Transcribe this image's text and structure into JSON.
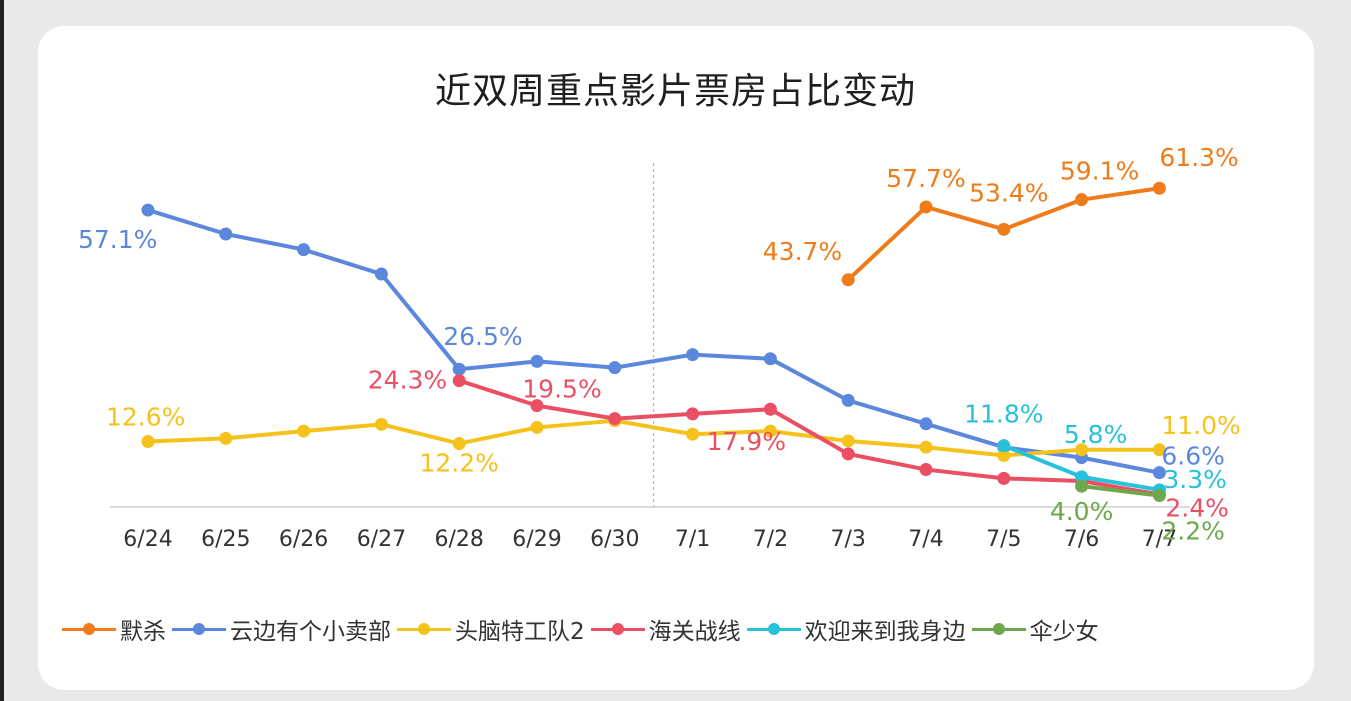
{
  "chart_data": {
    "type": "line",
    "title": "近双周重点影片票房占比变动",
    "xlabel": "",
    "ylabel": "",
    "categories": [
      "6/24",
      "6/25",
      "6/26",
      "6/27",
      "6/28",
      "6/29",
      "6/30",
      "7/1",
      "7/2",
      "7/3",
      "7/4",
      "7/5",
      "7/6",
      "7/7"
    ],
    "ylim": [
      0,
      65
    ],
    "grid": false,
    "legend_position": "bottom",
    "divider_after": "6/30",
    "series": [
      {
        "name": "默杀",
        "color": "#ef7b1a",
        "values": [
          null,
          null,
          null,
          null,
          null,
          null,
          null,
          null,
          null,
          43.7,
          57.7,
          53.4,
          59.1,
          61.3
        ]
      },
      {
        "name": "云边有个小卖部",
        "color": "#5b87dc",
        "values": [
          57.1,
          52.5,
          49.5,
          44.8,
          26.5,
          28.0,
          26.8,
          29.3,
          28.5,
          20.5,
          16.0,
          11.5,
          9.5,
          6.6
        ]
      },
      {
        "name": "头脑特工队2",
        "color": "#f5c21b",
        "values": [
          12.6,
          13.2,
          14.6,
          15.9,
          12.2,
          15.3,
          16.6,
          14.0,
          14.6,
          12.7,
          11.5,
          9.9,
          11.0,
          11.0
        ]
      },
      {
        "name": "海关战线",
        "color": "#ea4f63",
        "values": [
          null,
          null,
          null,
          null,
          24.3,
          19.5,
          17.0,
          17.9,
          18.8,
          10.2,
          7.2,
          5.5,
          5.0,
          2.4
        ]
      },
      {
        "name": "欢迎来到我身边",
        "color": "#27c1d9",
        "values": [
          null,
          null,
          null,
          null,
          null,
          null,
          null,
          null,
          null,
          null,
          null,
          11.8,
          5.8,
          3.3
        ]
      },
      {
        "name": "伞少女",
        "color": "#6fa84b",
        "values": [
          null,
          null,
          null,
          null,
          null,
          null,
          null,
          null,
          null,
          null,
          null,
          null,
          4.0,
          2.2
        ]
      }
    ],
    "annotations": [
      {
        "series": 0,
        "index": 9,
        "text": "43.7%",
        "anchor": "end",
        "dx": -6,
        "dy": -20
      },
      {
        "series": 0,
        "index": 10,
        "text": "57.7%",
        "anchor": "middle",
        "dx": 0,
        "dy": -20
      },
      {
        "series": 0,
        "index": 11,
        "text": "53.4%",
        "anchor": "middle",
        "dx": 5,
        "dy": -28
      },
      {
        "series": 0,
        "index": 12,
        "text": "59.1%",
        "anchor": "middle",
        "dx": 18,
        "dy": -20
      },
      {
        "series": 0,
        "index": 13,
        "text": "61.3%",
        "anchor": "start",
        "dx": 0,
        "dy": -22
      },
      {
        "series": 1,
        "index": 0,
        "text": "57.1%",
        "anchor": "start",
        "dx": -70,
        "dy": 38
      },
      {
        "series": 1,
        "index": 4,
        "text": "26.5%",
        "anchor": "start",
        "dx": -16,
        "dy": -24
      },
      {
        "series": 1,
        "index": 13,
        "text": "6.6%",
        "anchor": "start",
        "dx": 2,
        "dy": -8
      },
      {
        "series": 2,
        "index": 0,
        "text": "12.6%",
        "anchor": "start",
        "dx": -42,
        "dy": -16
      },
      {
        "series": 2,
        "index": 4,
        "text": "12.2%",
        "anchor": "middle",
        "dx": 0,
        "dy": 28
      },
      {
        "series": 2,
        "index": 13,
        "text": "11.0%",
        "anchor": "start",
        "dx": 2,
        "dy": -16
      },
      {
        "series": 3,
        "index": 4,
        "text": "24.3%",
        "anchor": "end",
        "dx": -12,
        "dy": 8
      },
      {
        "series": 3,
        "index": 5,
        "text": "19.5%",
        "anchor": "middle",
        "dx": 25,
        "dy": -8
      },
      {
        "series": 3,
        "index": 7,
        "text": "17.9%",
        "anchor": "start",
        "dx": 14,
        "dy": 36
      },
      {
        "series": 3,
        "index": 13,
        "text": "2.4%",
        "anchor": "start",
        "dx": 6,
        "dy": 22
      },
      {
        "series": 4,
        "index": 11,
        "text": "11.8%",
        "anchor": "middle",
        "dx": 0,
        "dy": -23
      },
      {
        "series": 4,
        "index": 12,
        "text": "5.8%",
        "anchor": "middle",
        "dx": 14,
        "dy": -34
      },
      {
        "series": 4,
        "index": 13,
        "text": "3.3%",
        "anchor": "start",
        "dx": 4,
        "dy": -2
      },
      {
        "series": 5,
        "index": 12,
        "text": "4.0%",
        "anchor": "middle",
        "dx": 0,
        "dy": 34
      },
      {
        "series": 5,
        "index": 13,
        "text": "2.2%",
        "anchor": "start",
        "dx": 2,
        "dy": 44
      }
    ]
  }
}
